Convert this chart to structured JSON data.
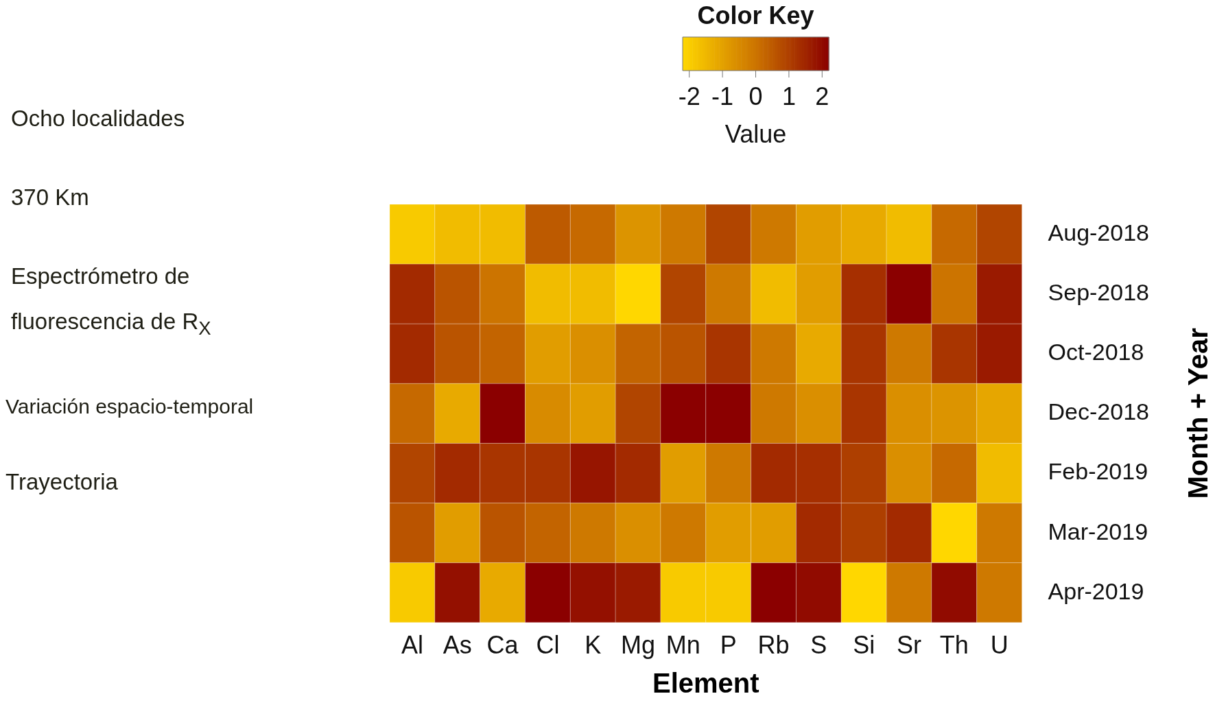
{
  "chart_data": {
    "type": "heatmap",
    "legend_title": "Color Key",
    "clabel": "Value",
    "xlabel": "Element",
    "ylabel": "Month + Year",
    "categories": [
      "Al",
      "As",
      "Ca",
      "Cl",
      "K",
      "Mg",
      "Mn",
      "P",
      "Rb",
      "S",
      "Si",
      "Sr",
      "Th",
      "U"
    ],
    "y_categories": [
      "Aug-2018",
      "Sep-2018",
      "Oct-2018",
      "Dec-2018",
      "Feb-2019",
      "Mar-2019",
      "Apr-2019"
    ],
    "cells": [
      [
        -1.9,
        -1.6,
        -1.6,
        0.5,
        0.2,
        -0.7,
        -0.1,
        0.9,
        -0.1,
        -0.9,
        -1.2,
        -1.6,
        0.2,
        0.9
      ],
      [
        1.4,
        0.6,
        0,
        -1.6,
        -1.6,
        -2.2,
        0.9,
        -0.1,
        -1.6,
        -0.9,
        1.3,
        2.2,
        0,
        1.7
      ],
      [
        1.4,
        0.6,
        0.3,
        -0.9,
        -0.6,
        0.3,
        0.6,
        1.2,
        -0.1,
        -1.2,
        1.2,
        -0.1,
        1.2,
        1.7
      ],
      [
        0.2,
        -1.2,
        2.2,
        -0.5,
        -0.9,
        0.9,
        2.2,
        2.2,
        -0.1,
        -0.6,
        1.2,
        -0.6,
        -0.7,
        -1.1
      ],
      [
        0.9,
        1.4,
        1.2,
        1.2,
        1.8,
        1.4,
        -0.9,
        -0.1,
        1.4,
        1.3,
        1.0,
        -0.6,
        0.2,
        -1.6
      ],
      [
        0.6,
        -0.9,
        0.6,
        0.3,
        -0.1,
        -0.6,
        -0.1,
        -0.9,
        -0.9,
        1.4,
        1.0,
        1.4,
        -2.2,
        -0.1
      ],
      [
        -1.9,
        1.9,
        -1.2,
        2.2,
        1.9,
        1.7,
        -1.9,
        -1.9,
        2.2,
        2.0,
        -2.2,
        -0.1,
        2.0,
        -0.1
      ]
    ],
    "clim": [
      -2.2,
      2.2
    ],
    "cticks": [
      -2,
      -1,
      0,
      1,
      2
    ],
    "annotations": [
      "Ocho localidades",
      "370 Km",
      "Espectrómetro de fluorescencia de R$_{X}$",
      "Variación espacio-temporal",
      "Trayectoria"
    ]
  }
}
